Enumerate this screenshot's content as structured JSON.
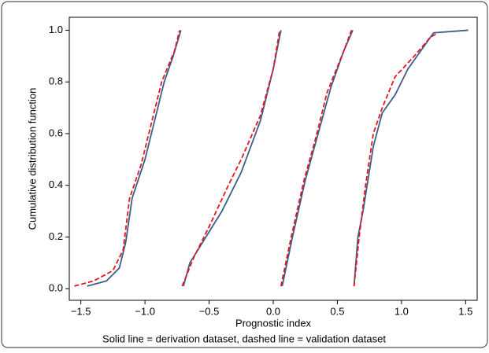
{
  "chart_data": {
    "type": "line",
    "xlabel": "Prognostic index",
    "ylabel": "Cumulative distribution function",
    "caption": "Solid line = derivation dataset, dashed line = validation dataset",
    "xlim": [
      -1.59,
      1.59
    ],
    "ylim": [
      -0.045,
      1.05
    ],
    "xticks": [
      {
        "value": -1.5,
        "label": "−1.5"
      },
      {
        "value": -1.0,
        "label": "−1.0"
      },
      {
        "value": -0.5,
        "label": "−0.5"
      },
      {
        "value": 0.0,
        "label": "0.0"
      },
      0.5,
      {
        "value": 1.0,
        "label": "1.0"
      },
      1.5
    ],
    "yticks": [
      {
        "value": 0.0,
        "label": "0.0"
      },
      0.2,
      0.4,
      0.6,
      0.8,
      {
        "value": 1.0,
        "label": "1.0"
      }
    ],
    "series": [
      {
        "color": "#3b5f8c",
        "dashed": false,
        "x": [
          -1.45,
          -1.3,
          -1.2,
          -1.15,
          -1.1,
          -1.0,
          -0.95,
          -0.85,
          -0.78,
          -0.72
        ],
        "values": [
          0.01,
          0.03,
          0.08,
          0.18,
          0.35,
          0.5,
          0.6,
          0.8,
          0.9,
          1.0
        ]
      },
      {
        "color": "#e8141c",
        "dashed": true,
        "x": [
          -1.55,
          -1.4,
          -1.25,
          -1.17,
          -1.12,
          -1.03,
          -0.97,
          -0.87,
          -0.77,
          -0.73
        ],
        "values": [
          0.01,
          0.03,
          0.07,
          0.15,
          0.35,
          0.48,
          0.6,
          0.8,
          0.92,
          1.0
        ]
      },
      {
        "color": "#3b5f8c",
        "dashed": false,
        "x": [
          -0.7,
          -0.65,
          -0.5,
          -0.4,
          -0.25,
          -0.1,
          0.0,
          0.06
        ],
        "values": [
          0.01,
          0.1,
          0.22,
          0.3,
          0.45,
          0.65,
          0.85,
          1.0
        ]
      },
      {
        "color": "#e8141c",
        "dashed": true,
        "x": [
          -0.71,
          -0.62,
          -0.5,
          -0.35,
          -0.25,
          -0.1,
          0.0,
          0.05
        ],
        "values": [
          0.01,
          0.12,
          0.24,
          0.4,
          0.5,
          0.67,
          0.85,
          1.0
        ]
      },
      {
        "color": "#3b5f8c",
        "dashed": false,
        "x": [
          0.07,
          0.15,
          0.25,
          0.35,
          0.45,
          0.55,
          0.62
        ],
        "values": [
          0.01,
          0.2,
          0.42,
          0.6,
          0.78,
          0.92,
          1.0
        ]
      },
      {
        "color": "#e8141c",
        "dashed": true,
        "x": [
          0.06,
          0.14,
          0.24,
          0.33,
          0.42,
          0.55,
          0.61
        ],
        "values": [
          0.01,
          0.2,
          0.42,
          0.58,
          0.76,
          0.92,
          1.0
        ]
      },
      {
        "color": "#3b5f8c",
        "dashed": false,
        "x": [
          0.63,
          0.66,
          0.7,
          0.78,
          0.85,
          0.95,
          1.05,
          1.15,
          1.25,
          1.52
        ],
        "values": [
          0.01,
          0.2,
          0.3,
          0.55,
          0.68,
          0.75,
          0.85,
          0.92,
          0.99,
          1.0
        ]
      },
      {
        "color": "#e8141c",
        "dashed": true,
        "x": [
          0.63,
          0.67,
          0.72,
          0.78,
          0.85,
          0.95,
          1.1,
          1.22,
          1.28
        ],
        "values": [
          0.01,
          0.2,
          0.4,
          0.6,
          0.7,
          0.82,
          0.9,
          0.97,
          0.99
        ]
      }
    ]
  }
}
